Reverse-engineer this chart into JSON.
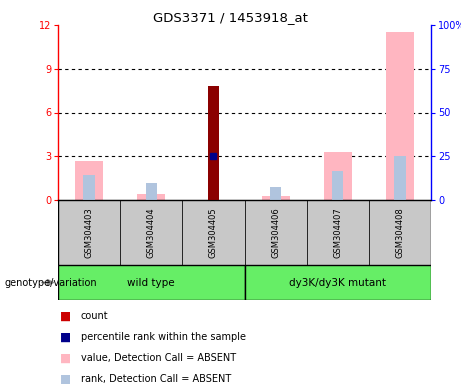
{
  "title": "GDS3371 / 1453918_at",
  "samples": [
    "GSM304403",
    "GSM304404",
    "GSM304405",
    "GSM304406",
    "GSM304407",
    "GSM304408"
  ],
  "ylim_left": [
    0,
    12
  ],
  "ylim_right": [
    0,
    100
  ],
  "yticks_left": [
    0,
    3,
    6,
    9,
    12
  ],
  "yticks_right": [
    0,
    25,
    50,
    75,
    100
  ],
  "ytick_labels_right": [
    "0",
    "25",
    "50",
    "75",
    "100%"
  ],
  "count_bars": {
    "sample_idx": [
      2
    ],
    "values": [
      7.8
    ],
    "color": "#8B0000"
  },
  "percentile_dots": {
    "sample_idx": [
      2
    ],
    "values": [
      3.0
    ],
    "color": "#00008B"
  },
  "absent_value_bars": {
    "sample_idx": [
      0,
      1,
      3,
      4,
      5
    ],
    "values": [
      2.7,
      0.4,
      0.3,
      3.3,
      11.5
    ],
    "color": "#FFB6C1"
  },
  "absent_rank_bars": {
    "sample_idx": [
      0,
      1,
      3,
      4,
      5
    ],
    "values": [
      1.7,
      1.2,
      0.9,
      2.0,
      3.0
    ],
    "color": "#B0C4DE"
  },
  "grid_dotted_at": [
    3,
    6,
    9
  ],
  "legend_items": [
    {
      "color": "#CC0000",
      "label": "count"
    },
    {
      "color": "#00008B",
      "label": "percentile rank within the sample"
    },
    {
      "color": "#FFB6C1",
      "label": "value, Detection Call = ABSENT"
    },
    {
      "color": "#B0C4DE",
      "label": "rank, Detection Call = ABSENT"
    }
  ],
  "sample_box_color": "#C8C8C8",
  "group_box_color": "#66EE66",
  "groups": [
    {
      "label": "wild type",
      "start": 0,
      "end": 3
    },
    {
      "label": "dy3K/dy3K mutant",
      "start": 3,
      "end": 6
    }
  ],
  "group_label_text": "genotype/variation"
}
